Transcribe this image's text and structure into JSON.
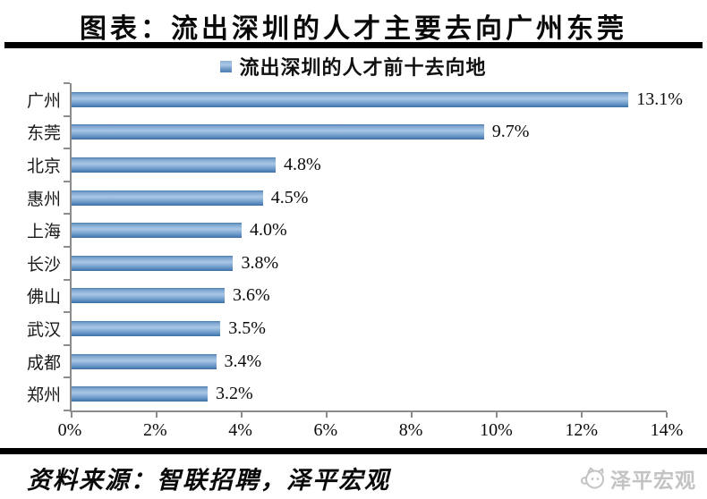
{
  "title": "图表：流出深圳的人才主要去向广州东莞",
  "chart_data": {
    "type": "bar",
    "orientation": "horizontal",
    "title": "流出深圳的人才前十去向地",
    "legend": "流出深圳的人才前十去向地",
    "legend_position": "top",
    "categories": [
      "广州",
      "东莞",
      "北京",
      "惠州",
      "上海",
      "长沙",
      "佛山",
      "武汉",
      "成都",
      "郑州"
    ],
    "values": [
      13.1,
      9.7,
      4.8,
      4.5,
      4.0,
      3.8,
      3.6,
      3.5,
      3.4,
      3.2
    ],
    "value_labels": [
      "13.1%",
      "9.7%",
      "4.8%",
      "4.5%",
      "4.0%",
      "3.8%",
      "3.6%",
      "3.5%",
      "3.4%",
      "3.2%"
    ],
    "x_ticks": [
      "0%",
      "2%",
      "4%",
      "6%",
      "8%",
      "10%",
      "12%",
      "14%"
    ],
    "xlim": [
      0,
      14
    ],
    "xlabel": "",
    "ylabel": "",
    "grid": "off",
    "bar_color": "#4f81bd",
    "axis_color": "#8c8c8c"
  },
  "footer": {
    "source": "资料来源：智联招聘，泽平宏观",
    "watermark_text": "泽平宏观",
    "watermark_icon": "zeping-mascot-icon",
    "watermark_color": "#c3c3c3"
  },
  "colors": {
    "accent_blue": "#4f81bd",
    "rule_black": "#000000",
    "axis_gray": "#8c8c8c",
    "watermark_gray": "#c3c3c3"
  }
}
